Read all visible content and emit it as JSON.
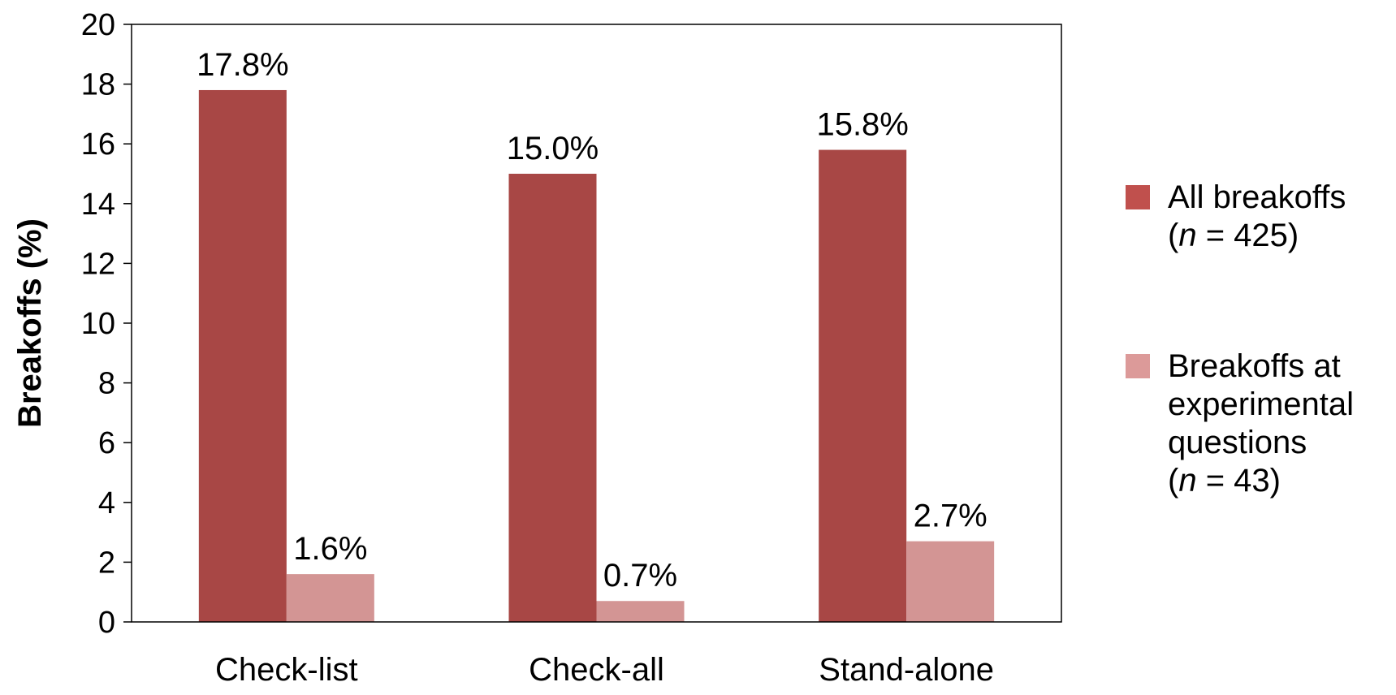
{
  "chart_data": {
    "type": "bar",
    "categories": [
      "Check-list",
      "Check-all",
      "Stand-alone"
    ],
    "series": [
      {
        "name": "All breakoffs (n = 425)",
        "legend_lines": [
          {
            "runs": [
              {
                "text": "All breakoffs",
                "italic": false
              }
            ]
          },
          {
            "runs": [
              {
                "text": "(",
                "italic": false
              },
              {
                "text": "n",
                "italic": true
              },
              {
                "text": " = 425)",
                "italic": false
              }
            ]
          }
        ],
        "values": [
          17.8,
          15.0,
          15.8
        ],
        "data_labels": [
          "17.8%",
          "15.0%",
          "15.8%"
        ],
        "color": "#A84745",
        "legend_color": "#C0504D"
      },
      {
        "name": "Breakoffs at experimental questions (n = 43)",
        "legend_lines": [
          {
            "runs": [
              {
                "text": "Breakoffs at",
                "italic": false
              }
            ]
          },
          {
            "runs": [
              {
                "text": "experimental",
                "italic": false
              }
            ]
          },
          {
            "runs": [
              {
                "text": "questions",
                "italic": false
              }
            ]
          },
          {
            "runs": [
              {
                "text": "(",
                "italic": false
              },
              {
                "text": "n",
                "italic": true
              },
              {
                "text": " = 43)",
                "italic": false
              }
            ]
          }
        ],
        "values": [
          1.6,
          0.7,
          2.7
        ],
        "data_labels": [
          "1.6%",
          "0.7%",
          "2.7%"
        ],
        "color": "#D39594",
        "legend_color": "#DC9A99"
      }
    ],
    "ylabel": "Breakoffs (%)",
    "xlabel": "",
    "ylim": [
      0,
      20
    ],
    "yticks": [
      0,
      2,
      4,
      6,
      8,
      10,
      12,
      14,
      16,
      18,
      20
    ],
    "ytick_labels": [
      "0",
      "2",
      "4",
      "6",
      "8",
      "10",
      "12",
      "14",
      "16",
      "18",
      "20"
    ],
    "grid": false,
    "legend_position": "right"
  }
}
